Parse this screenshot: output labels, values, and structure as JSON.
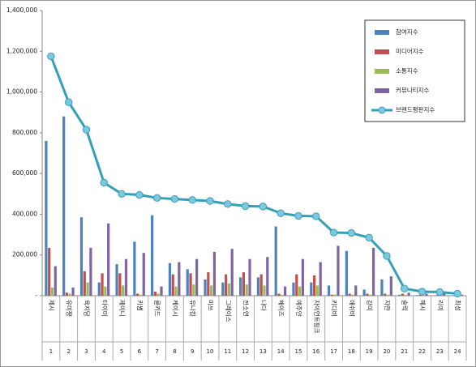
{
  "chart_data": {
    "type": "bar-line",
    "categories": [
      "제시",
      "유미쨩",
      "육지담",
      "타이미",
      "제이니",
      "키썸",
      "클키드",
      "케이시",
      "유나킴",
      "미쓰",
      "그레이스",
      "전소연",
      "나다",
      "헤이즈",
      "예주얀",
      "자이언트핑크",
      "키디비",
      "애쉬비",
      "강미",
      "지란",
      "슬릭",
      "헤시",
      "리미",
      "최성"
    ],
    "ranks": [
      1,
      2,
      3,
      4,
      5,
      6,
      7,
      8,
      9,
      10,
      11,
      12,
      13,
      14,
      15,
      16,
      17,
      18,
      19,
      20,
      21,
      22,
      23,
      24
    ],
    "series": [
      {
        "name": "참여지수",
        "color": "#4f81bd",
        "kind": "bar",
        "values": [
          760000,
          880000,
          385000,
          65000,
          155000,
          265000,
          395000,
          160000,
          130000,
          80000,
          65000,
          90000,
          90000,
          340000,
          65000,
          65000,
          50000,
          220000,
          30000,
          80000,
          5000,
          3000,
          2000,
          2000
        ]
      },
      {
        "name": "미디어지수",
        "color": "#c0504d",
        "kind": "bar",
        "values": [
          235000,
          15000,
          120000,
          110000,
          110000,
          10000,
          20000,
          105000,
          110000,
          115000,
          105000,
          115000,
          105000,
          10000,
          105000,
          100000,
          5000,
          10000,
          10000,
          10000,
          10000,
          5000,
          5000,
          3000
        ]
      },
      {
        "name": "소통지수",
        "color": "#9bbb59",
        "kind": "bar",
        "values": [
          40000,
          10000,
          65000,
          45000,
          50000,
          5000,
          10000,
          45000,
          55000,
          50000,
          60000,
          55000,
          50000,
          5000,
          45000,
          50000,
          5000,
          5000,
          5000,
          5000,
          5000,
          3000,
          3000,
          2000
        ]
      },
      {
        "name": "커뮤니티지수",
        "color": "#8064a2",
        "kind": "bar",
        "values": [
          145000,
          40000,
          235000,
          355000,
          180000,
          210000,
          45000,
          165000,
          180000,
          215000,
          230000,
          180000,
          190000,
          45000,
          180000,
          165000,
          245000,
          50000,
          235000,
          95000,
          15000,
          10000,
          10000,
          5000
        ]
      },
      {
        "name": "브랜드평판지수",
        "color": "#31a0b8",
        "kind": "line",
        "values": [
          1175000,
          950000,
          815000,
          555000,
          500000,
          495000,
          480000,
          475000,
          470000,
          465000,
          450000,
          440000,
          438000,
          405000,
          392000,
          390000,
          310000,
          308000,
          285000,
          195000,
          35000,
          20000,
          18000,
          10000
        ]
      }
    ],
    "ylim": [
      0,
      1400000
    ],
    "yticks": [
      {
        "value": 0,
        "label": "-"
      },
      {
        "value": 200000,
        "label": "200,000"
      },
      {
        "value": 400000,
        "label": "400,000"
      },
      {
        "value": 600000,
        "label": "600,000"
      },
      {
        "value": 800000,
        "label": "800,000"
      },
      {
        "value": 1000000,
        "label": "1,000,000"
      },
      {
        "value": 1200000,
        "label": "1,200,000"
      },
      {
        "value": 1400000,
        "label": "1,400,000"
      }
    ],
    "legend": "top-right"
  }
}
